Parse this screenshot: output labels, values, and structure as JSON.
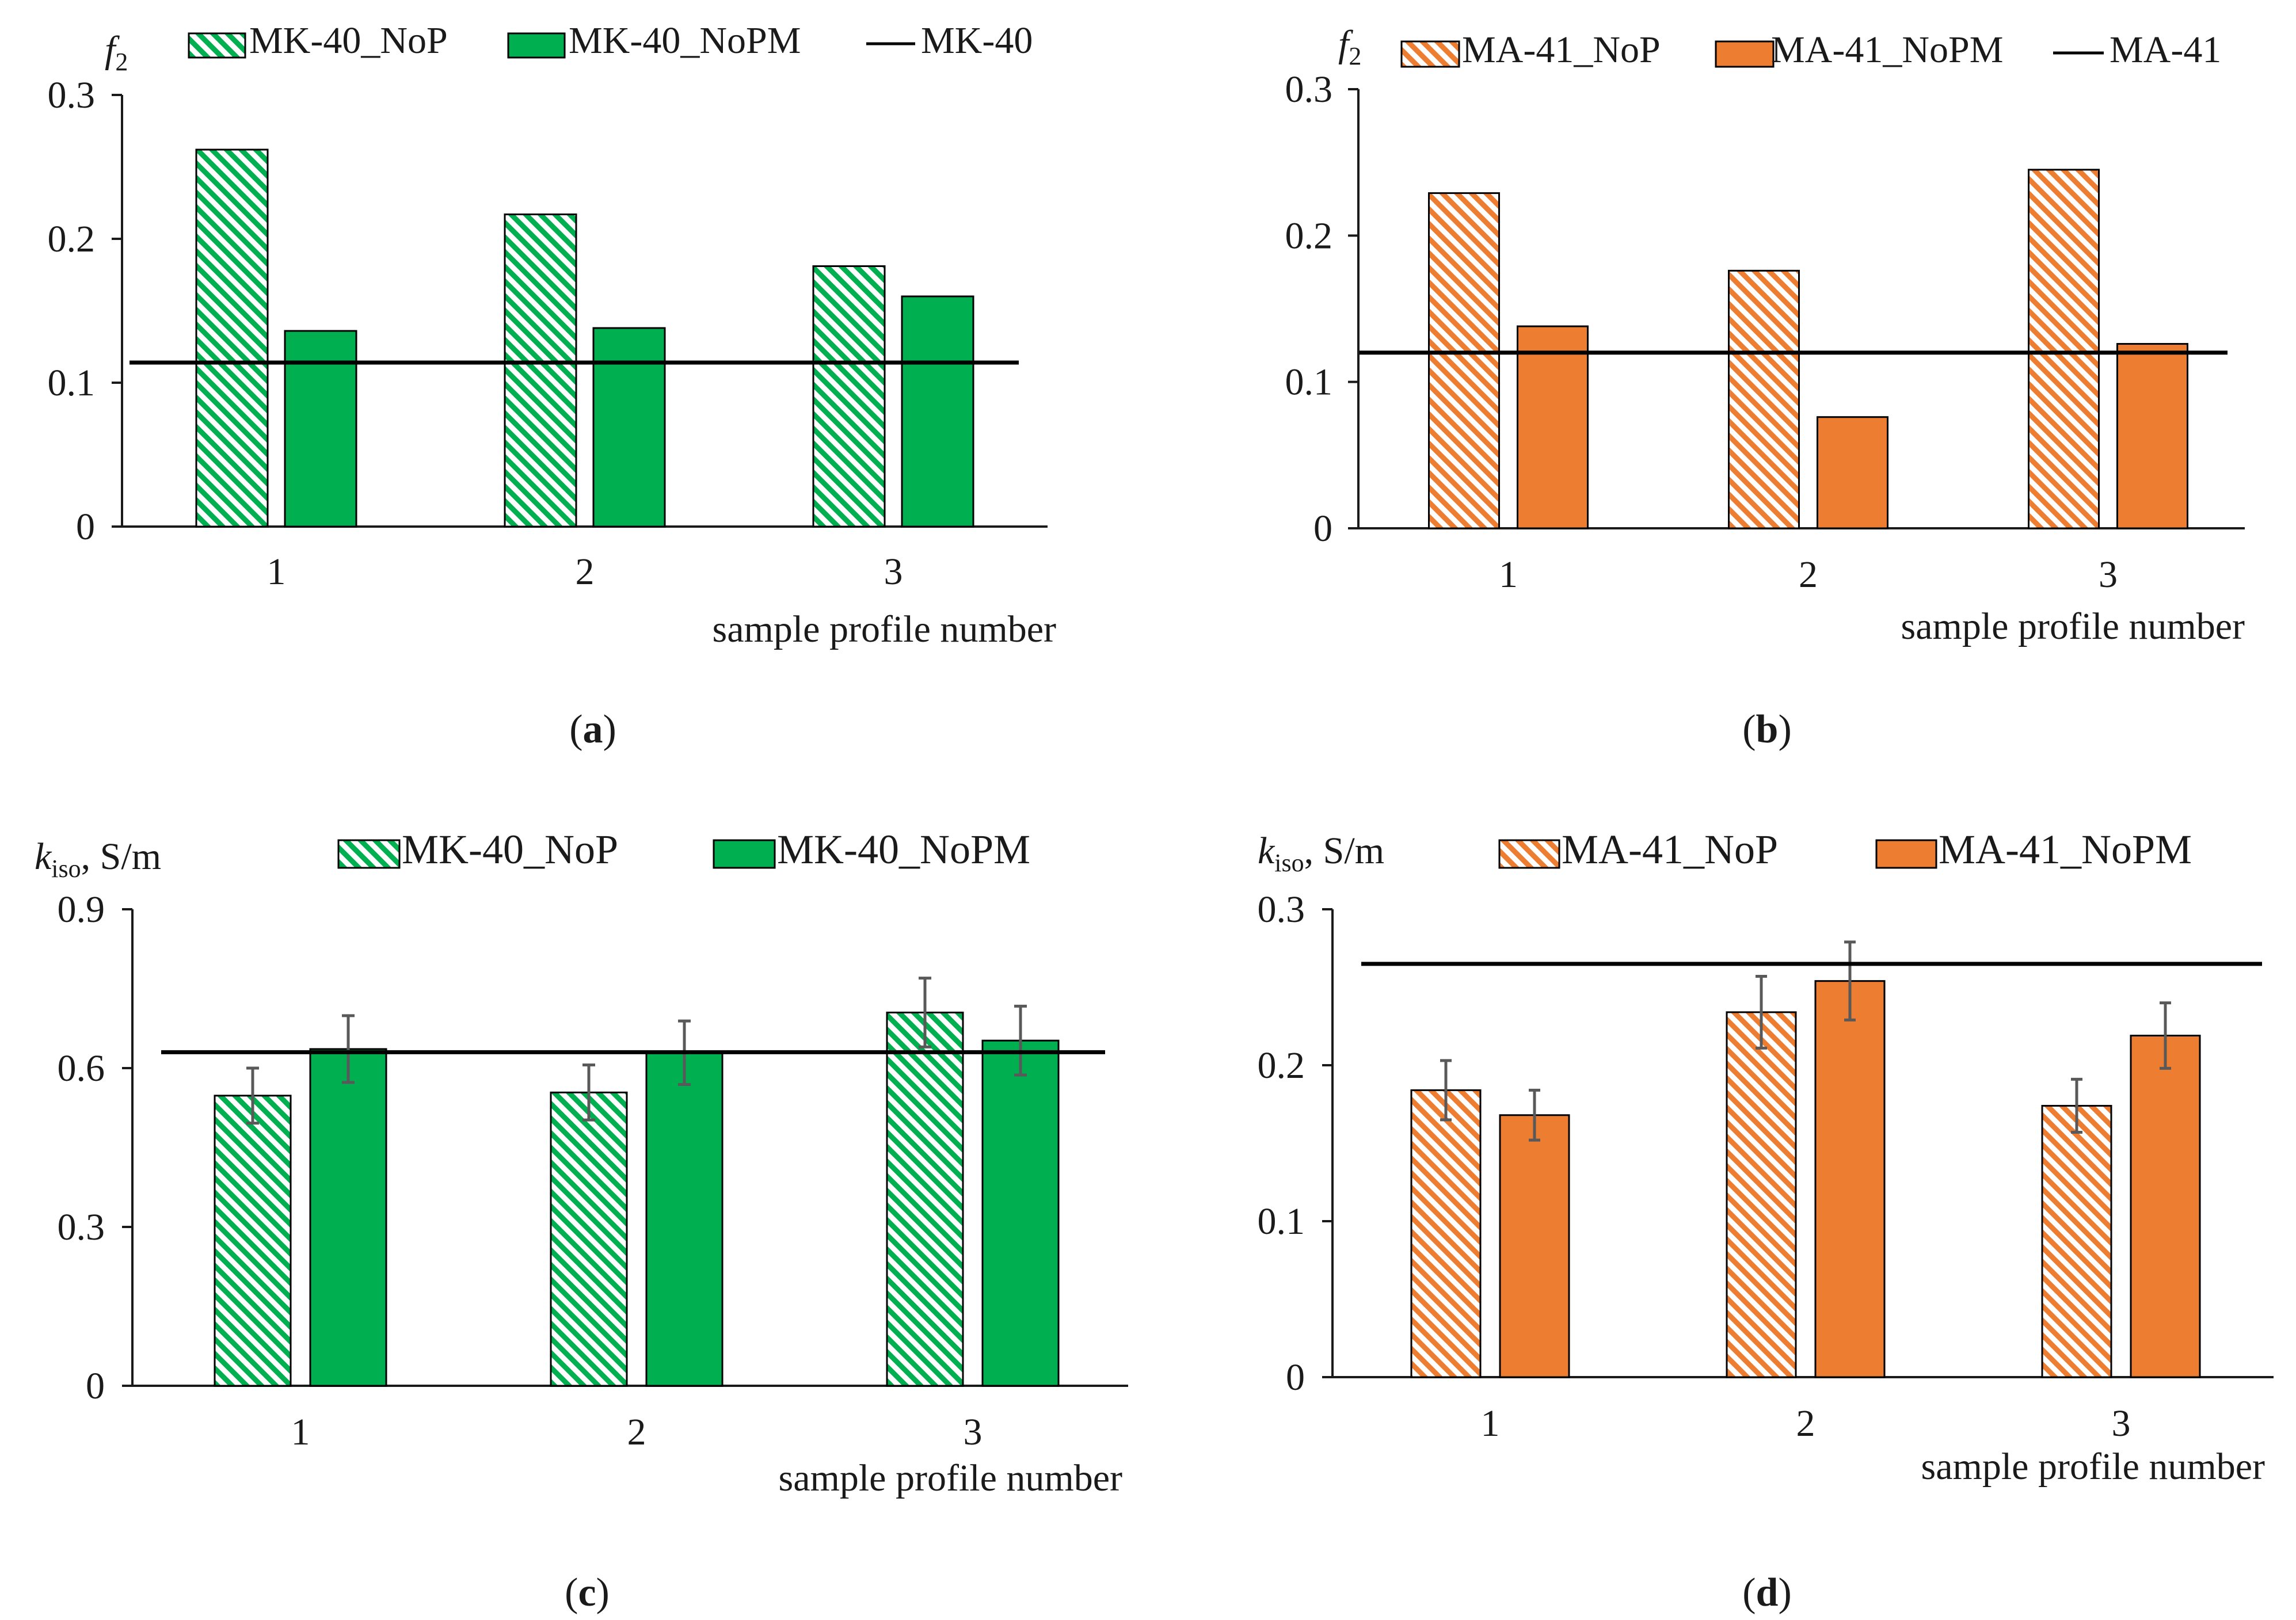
{
  "colors": {
    "green": "#00b050",
    "orange": "#ed7d31",
    "axis": "#1a1a1a",
    "errorbar": "#595959",
    "reference": "#000000"
  },
  "chart_data": [
    {
      "panel": "(a)",
      "type": "bar",
      "color": "#00b050",
      "ylabel_main": "f",
      "ylabel_sub": "2",
      "ylabel_suffix": "",
      "xlabel": "sample profile number",
      "categories": [
        "1",
        "2",
        "3"
      ],
      "ylim": [
        0,
        0.3
      ],
      "yticks": [
        "0",
        "0.1",
        "0.2",
        "0.3"
      ],
      "series": [
        {
          "name": "MK-40_NoP",
          "style": "hatched",
          "values": [
            0.262,
            0.217,
            0.181
          ]
        },
        {
          "name": "MK-40_NoPM",
          "style": "solid",
          "values": [
            0.136,
            0.138,
            0.16
          ]
        }
      ],
      "reference": {
        "name": "MK-40",
        "value": 0.114
      },
      "legend_placement": "top"
    },
    {
      "panel": "(b)",
      "type": "bar",
      "color": "#ed7d31",
      "ylabel_main": "f",
      "ylabel_sub": "2",
      "ylabel_suffix": "",
      "xlabel": "sample profile number",
      "categories": [
        "1",
        "2",
        "3"
      ],
      "ylim": [
        0,
        0.3
      ],
      "yticks": [
        "0",
        "0.1",
        "0.2",
        "0.3"
      ],
      "series": [
        {
          "name": "MA-41_NoP",
          "style": "hatched",
          "values": [
            0.229,
            0.176,
            0.245
          ]
        },
        {
          "name": "MA-41_NoPM",
          "style": "solid",
          "values": [
            0.138,
            0.076,
            0.126
          ]
        }
      ],
      "reference": {
        "name": "MA-41",
        "value": 0.12
      },
      "legend_placement": "top"
    },
    {
      "panel": "(c)",
      "type": "bar",
      "color": "#00b050",
      "ylabel_main": "k",
      "ylabel_sub": "iso",
      "ylabel_suffix": ", S/m",
      "xlabel": "sample profile number",
      "categories": [
        "1",
        "2",
        "3"
      ],
      "ylim": [
        0,
        0.9
      ],
      "yticks": [
        "0",
        "0.3",
        "0.6",
        "0.9"
      ],
      "series": [
        {
          "name": "MK-40_NoP",
          "style": "hatched",
          "values": [
            0.548,
            0.554,
            0.705
          ],
          "errors": [
            0.052,
            0.052,
            0.065
          ]
        },
        {
          "name": "MK-40_NoPM",
          "style": "solid",
          "values": [
            0.636,
            0.629,
            0.652
          ],
          "errors": [
            0.063,
            0.06,
            0.065
          ]
        }
      ],
      "reference": {
        "name": "",
        "value": 0.63
      },
      "legend_placement": "top"
    },
    {
      "panel": "(d)",
      "type": "bar",
      "color": "#ed7d31",
      "ylabel_main": "k",
      "ylabel_sub": "iso",
      "ylabel_suffix": ", S/m",
      "xlabel": "sample profile number",
      "categories": [
        "1",
        "2",
        "3"
      ],
      "ylim": [
        0,
        0.3
      ],
      "yticks": [
        "0",
        "0.1",
        "0.2",
        "0.3"
      ],
      "series": [
        {
          "name": "MA-41_NoP",
          "style": "hatched",
          "values": [
            0.184,
            0.234,
            0.174
          ],
          "errors": [
            0.019,
            0.023,
            0.017
          ]
        },
        {
          "name": "MA-41_NoPM",
          "style": "solid",
          "values": [
            0.168,
            0.254,
            0.219
          ],
          "errors": [
            0.016,
            0.025,
            0.021
          ]
        }
      ],
      "reference": {
        "name": "",
        "value": 0.265
      },
      "legend_placement": "top"
    }
  ]
}
